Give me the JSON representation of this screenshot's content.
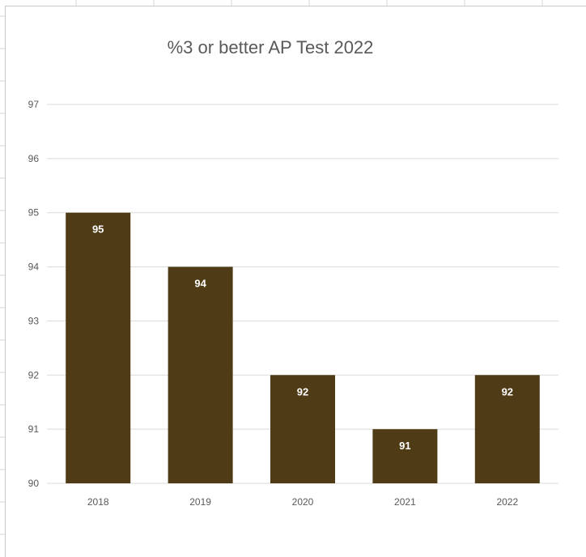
{
  "chart_data": {
    "type": "bar",
    "title": "%3 or better AP Test 2022",
    "xlabel": "",
    "ylabel": "",
    "categories": [
      "2018",
      "2019",
      "2020",
      "2021",
      "2022"
    ],
    "values": [
      95,
      94,
      92,
      91,
      92
    ],
    "ylim": [
      90,
      97
    ],
    "yticks": [
      90,
      91,
      92,
      93,
      94,
      95,
      96,
      97
    ],
    "grid": true,
    "legend": "none",
    "data_labels": true,
    "bar_color": "#4f3b15",
    "gridline_color": "#d9d9d9",
    "text_color": "#595959"
  }
}
